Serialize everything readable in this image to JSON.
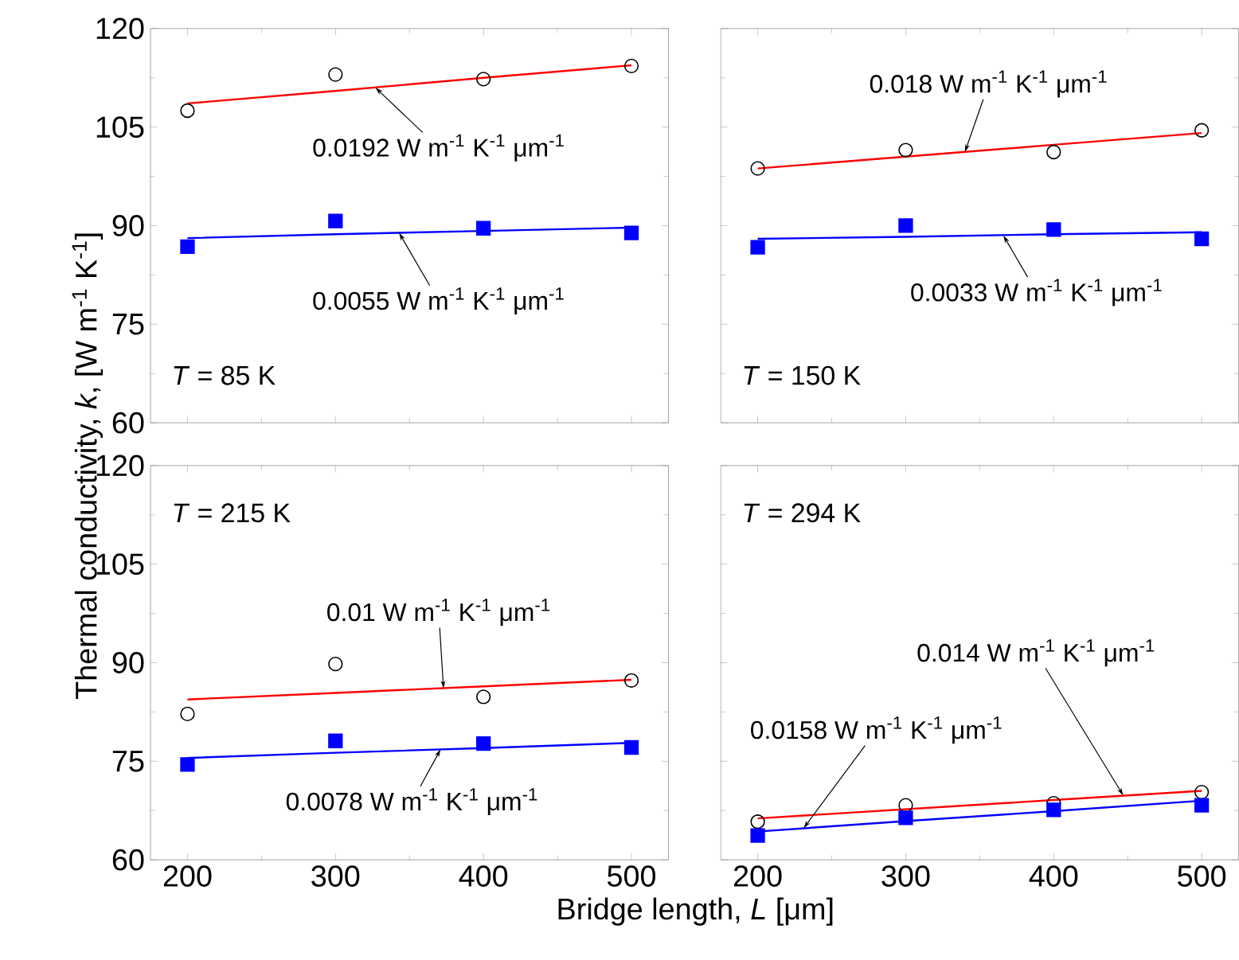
{
  "chart_data": [
    {
      "type": "scatter",
      "x": [
        200,
        300,
        400,
        500
      ],
      "xlim": [
        175,
        525
      ],
      "xticks": [
        200,
        300,
        400,
        500
      ],
      "ylim": [
        60,
        120
      ],
      "yticks": [
        60,
        75,
        90,
        105,
        120
      ],
      "tick_labels": "y",
      "grid": false,
      "series": [
        {
          "marker": "circle",
          "color": "#000000",
          "values": [
            107.5,
            113.0,
            112.3,
            114.3
          ]
        },
        {
          "marker": "square",
          "color": "#0000ff",
          "values": [
            86.8,
            90.7,
            89.6,
            88.9
          ]
        },
        {
          "type": "line",
          "marker": "none",
          "color": "#ff0000",
          "values": [
            108.6,
            110.5,
            112.5,
            114.4
          ]
        },
        {
          "type": "line",
          "marker": "none",
          "color": "#0000ff",
          "values": [
            88.1,
            88.7,
            89.2,
            89.7
          ]
        }
      ],
      "annotations": [
        "*T* = 85 K",
        {
          "text": "0.0192 W m$^{-1}$ K$^{-1}$ μm$^{-1}$",
          "x": 327,
          "y": 111.0
        },
        {
          "text": "0.0055 W m$^{-1}$ K$^{-1}$ μm$^{-1}$",
          "x": 343,
          "y": 88.9
        }
      ]
    },
    {
      "type": "scatter",
      "x": [
        200,
        300,
        400,
        500
      ],
      "xlim": [
        175,
        525
      ],
      "xticks": [
        200,
        300,
        400,
        500
      ],
      "ylim": [
        60,
        120
      ],
      "yticks": [
        60,
        75,
        90,
        105,
        120
      ],
      "tick_labels": false,
      "grid": false,
      "series": [
        {
          "marker": "circle",
          "color": "#000000",
          "values": [
            98.7,
            101.5,
            101.2,
            104.5
          ]
        },
        {
          "marker": "square",
          "color": "#0000ff",
          "values": [
            86.7,
            90.0,
            89.4,
            88.0
          ]
        },
        {
          "type": "line",
          "marker": "none",
          "color": "#ff0000",
          "values": [
            98.7,
            100.5,
            102.3,
            104.1
          ]
        },
        {
          "type": "line",
          "marker": "none",
          "color": "#0000ff",
          "values": [
            88.0,
            88.3,
            88.7,
            89.0
          ]
        }
      ],
      "annotations": [
        "*T* = 150 K",
        {
          "text": "0.018 W m$^{-1}$ K$^{-1}$ μm$^{-1}$",
          "x": 340,
          "y": 101.2
        },
        {
          "text": "0.0033 W m$^{-1}$ K$^{-1}$ μm$^{-1}$",
          "x": 366,
          "y": 88.5
        }
      ]
    },
    {
      "type": "scatter",
      "x": [
        200,
        300,
        400,
        500
      ],
      "xlim": [
        175,
        525
      ],
      "xticks": [
        200,
        300,
        400,
        500
      ],
      "ylim": [
        60,
        120
      ],
      "yticks": [
        60,
        75,
        90,
        105,
        120
      ],
      "grid": false,
      "xlabel": "Bridge length, *L* [μm]",
      "ylabel": "Thermal conductivity, *k*, [W m$^{-1}$ K$^{-1}$]",
      "series": [
        {
          "marker": "circle",
          "color": "#000000",
          "values": [
            82.2,
            89.8,
            84.8,
            87.3
          ]
        },
        {
          "marker": "square",
          "color": "#0000ff",
          "values": [
            74.5,
            78.1,
            77.7,
            77.1
          ]
        },
        {
          "type": "line",
          "marker": "none",
          "color": "#ff0000",
          "values": [
            84.4,
            85.4,
            86.4,
            87.4
          ]
        },
        {
          "type": "line",
          "marker": "none",
          "color": "#0000ff",
          "values": [
            75.5,
            76.3,
            77.0,
            77.8
          ]
        }
      ],
      "annotations": [
        "*T* = 215 K",
        {
          "text": "0.01 W m$^{-1}$ K$^{-1}$ μm$^{-1}$",
          "x": 373,
          "y": 86.1
        },
        {
          "text": "0.0078 W m$^{-1}$ K$^{-1}$ μm$^{-1}$",
          "x": 371,
          "y": 76.8
        }
      ]
    },
    {
      "type": "scatter",
      "x": [
        200,
        300,
        400,
        500
      ],
      "xlim": [
        175,
        525
      ],
      "xticks": [
        200,
        300,
        400,
        500
      ],
      "ylim": [
        60,
        120
      ],
      "yticks": [
        60,
        75,
        90,
        105,
        120
      ],
      "tick_labels": "x",
      "grid": false,
      "series": [
        {
          "marker": "circle",
          "color": "#000000",
          "values": [
            65.8,
            68.3,
            68.6,
            70.3
          ]
        },
        {
          "marker": "square",
          "color": "#0000ff",
          "values": [
            63.7,
            66.4,
            67.6,
            68.3
          ]
        },
        {
          "type": "line",
          "marker": "none",
          "color": "#ff0000",
          "values": [
            66.3,
            67.7,
            69.1,
            70.5
          ]
        },
        {
          "type": "line",
          "marker": "none",
          "color": "#0000ff",
          "values": [
            64.3,
            65.9,
            67.4,
            69.0
          ]
        }
      ],
      "annotations": [
        "*T* = 294 K",
        {
          "text": "0.014 W m$^{-1}$ K$^{-1}$ μm$^{-1}$",
          "x": 447,
          "y": 69.8
        },
        {
          "text": "0.0158 W m$^{-1}$ K$^{-1}$ μm$^{-1}$",
          "x": 231,
          "y": 64.8
        }
      ]
    }
  ]
}
